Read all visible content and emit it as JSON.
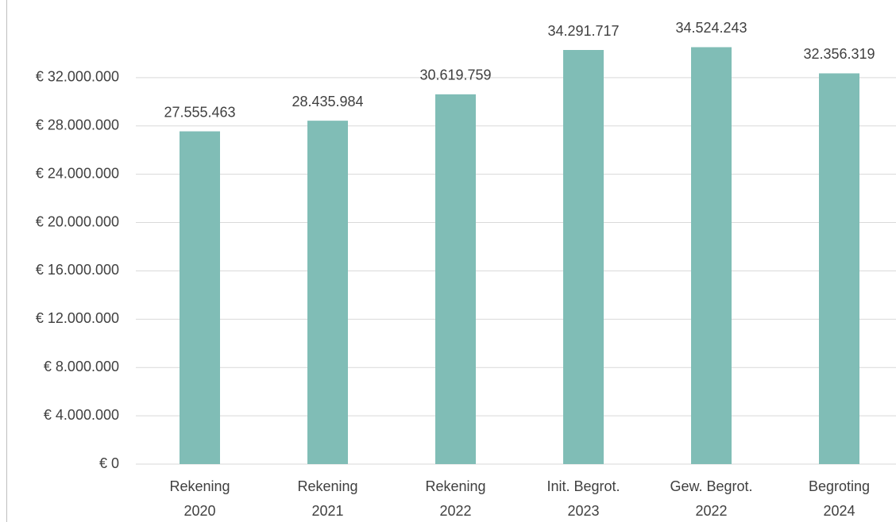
{
  "chart_data": {
    "type": "bar",
    "categories": [
      [
        "Rekening",
        "2020"
      ],
      [
        "Rekening",
        "2021"
      ],
      [
        "Rekening",
        "2022"
      ],
      [
        "Init. Begrot.",
        "2023"
      ],
      [
        "Gew. Begrot.",
        "2022"
      ],
      [
        "Begroting",
        "2024"
      ]
    ],
    "values": [
      27555463,
      28435984,
      30619759,
      34291717,
      34524243,
      32356319
    ],
    "value_labels": [
      "27.555.463",
      "28.435.984",
      "30.619.759",
      "34.291.717",
      "34.524.243",
      "32.356.319"
    ],
    "color": "#80bdb6",
    "ylim": [
      0,
      36000000
    ],
    "yticks": [
      {
        "value": 0,
        "label": "€ 0"
      },
      {
        "value": 4000000,
        "label": "€ 4.000.000"
      },
      {
        "value": 8000000,
        "label": "€ 8.000.000"
      },
      {
        "value": 12000000,
        "label": "€ 12.000.000"
      },
      {
        "value": 16000000,
        "label": "€ 16.000.000"
      },
      {
        "value": 20000000,
        "label": "€ 20.000.000"
      },
      {
        "value": 24000000,
        "label": "€ 24.000.000"
      },
      {
        "value": 28000000,
        "label": "€ 28.000.000"
      },
      {
        "value": 32000000,
        "label": "€ 32.000.000"
      }
    ],
    "grid": true
  }
}
